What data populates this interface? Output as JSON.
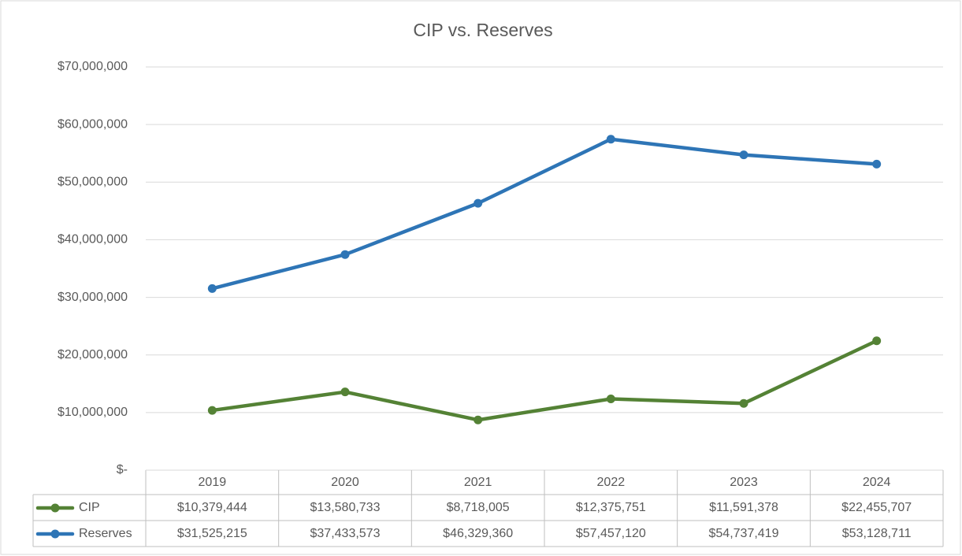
{
  "chart_data": {
    "type": "line",
    "title": "CIP vs. Reserves",
    "categories": [
      "2019",
      "2020",
      "2021",
      "2022",
      "2023",
      "2024"
    ],
    "series": [
      {
        "name": "CIP",
        "color": "#548235",
        "values": [
          10379444,
          13580733,
          8718005,
          12375751,
          11591378,
          22455707
        ],
        "value_labels": [
          "$10,379,444",
          "$13,580,733",
          "$8,718,005",
          "$12,375,751",
          "$11,591,378",
          "$22,455,707"
        ]
      },
      {
        "name": "Reserves",
        "color": "#2e75b6",
        "values": [
          31525215,
          37433573,
          46329360,
          57457120,
          54737419,
          53128711
        ],
        "value_labels": [
          "$31,525,215",
          "$37,433,573",
          "$46,329,360",
          "$57,457,120",
          "$54,737,419",
          "$53,128,711"
        ]
      }
    ],
    "ylim": [
      0,
      70000000
    ],
    "yticks": [
      {
        "value": 0,
        "label": "$-"
      },
      {
        "value": 10000000,
        "label": "$10,000,000"
      },
      {
        "value": 20000000,
        "label": "$20,000,000"
      },
      {
        "value": 30000000,
        "label": "$30,000,000"
      },
      {
        "value": 40000000,
        "label": "$40,000,000"
      },
      {
        "value": 50000000,
        "label": "$50,000,000"
      },
      {
        "value": 60000000,
        "label": "$60,000,000"
      },
      {
        "value": 70000000,
        "label": "$70,000,000"
      }
    ],
    "grid": true
  }
}
